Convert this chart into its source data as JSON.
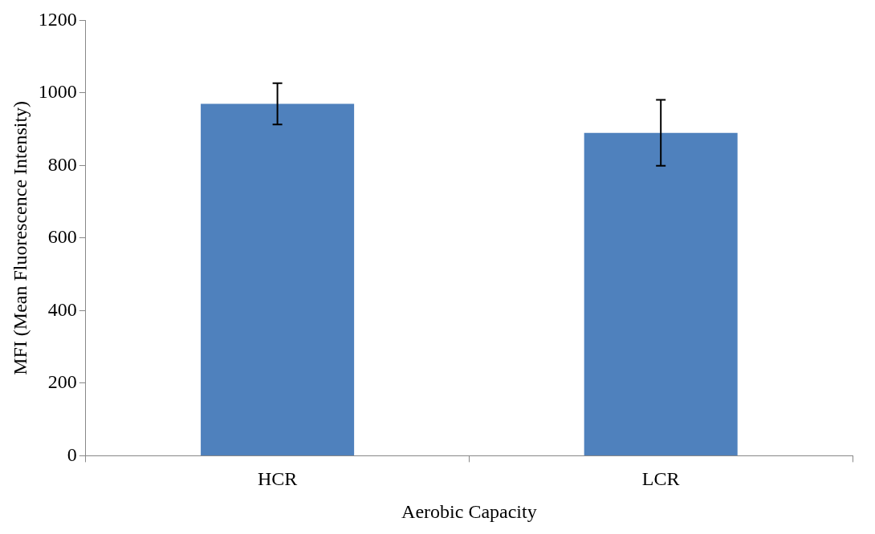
{
  "chart_data": {
    "type": "bar",
    "xlabel": "Aerobic Capacity",
    "ylabel": "MFI (Mean Fluorescence Intensity)",
    "categories": [
      "HCR",
      "LCR"
    ],
    "values": [
      970,
      890
    ],
    "errors": [
      57,
      91
    ],
    "color": "#4f81bd",
    "ylim": [
      0,
      1200
    ],
    "yticks": [
      0,
      200,
      400,
      600,
      800,
      1000,
      1200
    ],
    "grid": false,
    "legend": false
  }
}
